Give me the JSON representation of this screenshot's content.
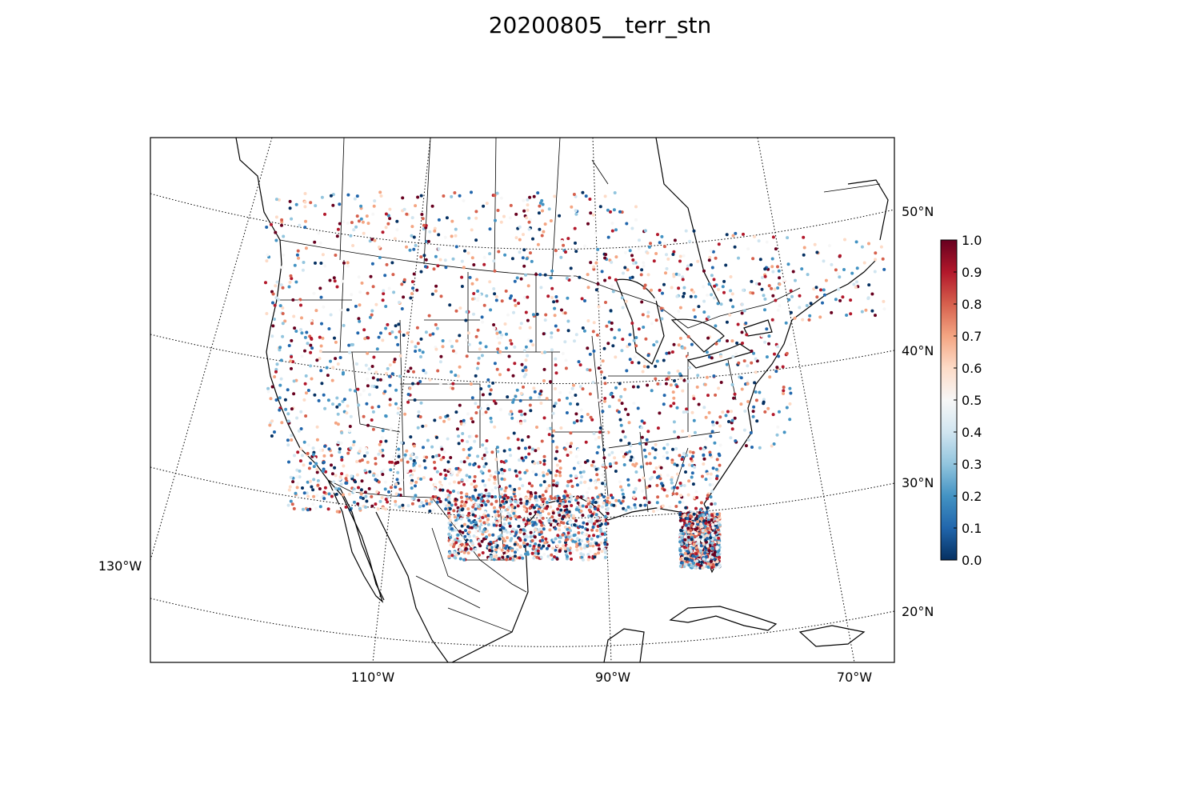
{
  "title": "20200805__terr_stn",
  "map": {
    "projection": "lambert-conformal",
    "meridians": [
      {
        "label": "130°W",
        "value": -130
      },
      {
        "label": "110°W",
        "value": -110
      },
      {
        "label": "90°W",
        "value": -90
      },
      {
        "label": "70°W",
        "value": -70
      }
    ],
    "parallels": [
      {
        "label": "20°N",
        "value": 20
      },
      {
        "label": "30°N",
        "value": 30
      },
      {
        "label": "40°N",
        "value": 40
      },
      {
        "label": "50°N",
        "value": 50
      }
    ],
    "gridline_style": "dotted",
    "coastline_color": "#000000",
    "border_color": "#000000"
  },
  "colorbar": {
    "colormap": "RdBu_r",
    "range": [
      0.0,
      1.0
    ],
    "ticks": [
      "0.0",
      "0.1",
      "0.2",
      "0.3",
      "0.4",
      "0.5",
      "0.6",
      "0.7",
      "0.8",
      "0.9",
      "1.0"
    ],
    "colors": [
      "#053061",
      "#2166ac",
      "#4393c3",
      "#92c5de",
      "#d1e5f0",
      "#f7f7f7",
      "#fddbc7",
      "#f4a582",
      "#d6604d",
      "#b2182b",
      "#67001f"
    ]
  },
  "stations": {
    "marker": "dot",
    "value_range": [
      0.0,
      1.0
    ]
  }
}
